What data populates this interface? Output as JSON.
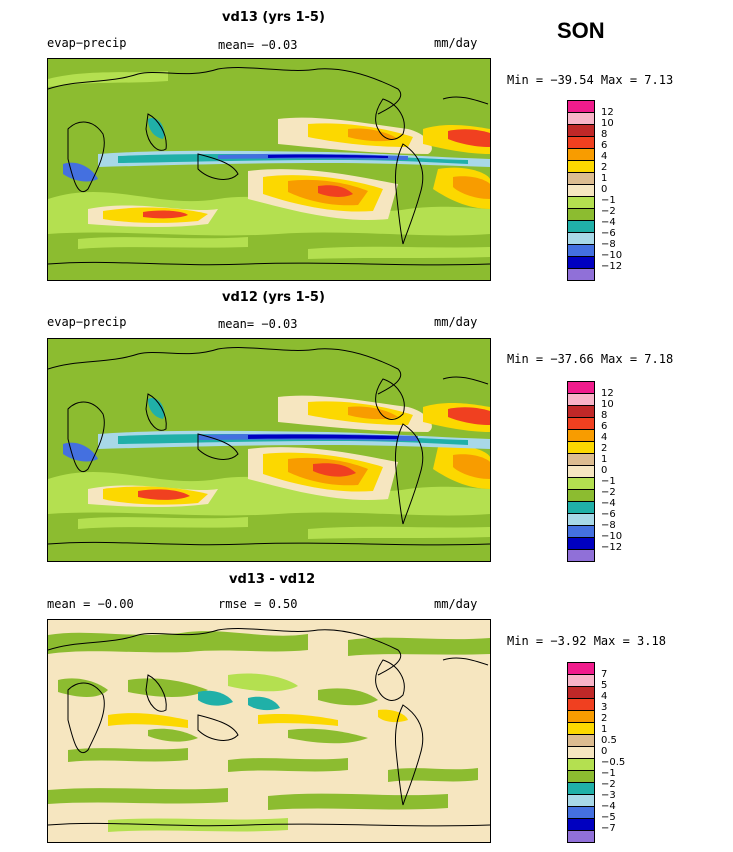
{
  "season": "SON",
  "colors": {
    "positive_12": "#f01c8c",
    "positive_10": "#f8b4c8",
    "positive_8": "#c02828",
    "positive_6": "#f04020",
    "positive_4": "#f89c00",
    "positive_2": "#fcd800",
    "positive_1": "#dcbc90",
    "neutral": "#f6e6c0",
    "negative_1": "#8cbc30",
    "negative_2": "#b4e050",
    "negative_4": "#20b0a8",
    "negative_6": "#a8d8e8",
    "negative_8": "#4470e0",
    "negative_10": "#0000c0",
    "negative_12": "#9070d8"
  },
  "panels": [
    {
      "title": "vd13 (yrs 1-5)",
      "left_label": "evap−precip",
      "mean_text": "mean=  −0.03",
      "units": "mm/day",
      "minmax": "Min = −39.54 Max =   7.13",
      "legend_ticks": [
        "12",
        "10",
        "8",
        "6",
        "4",
        "2",
        "1",
        "0",
        "−1",
        "−2",
        "−4",
        "−6",
        "−8",
        "−10",
        "−12"
      ]
    },
    {
      "title": "vd12 (yrs 1-5)",
      "left_label": "evap−precip",
      "mean_text": "mean=  −0.03",
      "units": "mm/day",
      "minmax": "Min = −37.66 Max =   7.18",
      "legend_ticks": [
        "12",
        "10",
        "8",
        "6",
        "4",
        "2",
        "1",
        "0",
        "−1",
        "−2",
        "−4",
        "−6",
        "−8",
        "−10",
        "−12"
      ]
    },
    {
      "title": "vd13 - vd12",
      "left_label": "mean =  −0.00",
      "mean_text": "rmse =   0.50",
      "units": "mm/day",
      "minmax": "Min =  −3.92 Max =   3.18",
      "legend_ticks": [
        "7",
        "5",
        "4",
        "3",
        "2",
        "1",
        "0.5",
        "0",
        "−0.5",
        "−1",
        "−2",
        "−3",
        "−4",
        "−5",
        "−7"
      ]
    }
  ],
  "legend_colors": [
    "#f01c8c",
    "#f8b4c8",
    "#c02828",
    "#f04020",
    "#f89c00",
    "#fcd800",
    "#dcbc90",
    "#f6e6c0",
    "#b4e050",
    "#8cbc30",
    "#20b0a8",
    "#a8d8e8",
    "#4470e0",
    "#0000c0",
    "#9070d8"
  ]
}
